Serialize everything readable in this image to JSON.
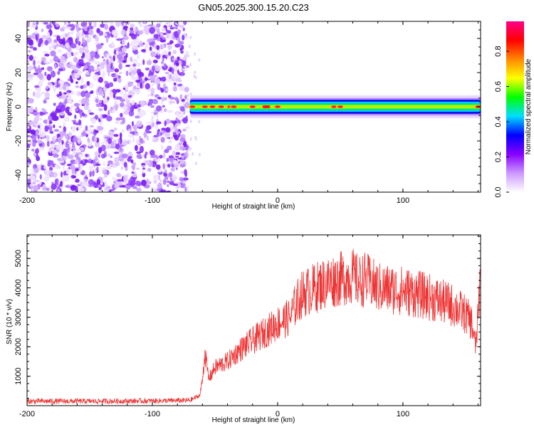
{
  "title": "GN05.2025.300.15.20.C23",
  "chart_data": [
    {
      "type": "heatmap",
      "title": "GN05.2025.300.15.20.C23",
      "xlabel": "Height of straight line (km)",
      "ylabel": "Frequency (Hz)",
      "xlim": [
        -200,
        162
      ],
      "ylim": [
        -50,
        50
      ],
      "xticks": [
        -200,
        -100,
        0,
        100
      ],
      "xtick_labels": [
        "-200",
        "-100",
        "0",
        "100"
      ],
      "yticks": [
        -40,
        -20,
        0,
        20,
        40
      ],
      "ytick_labels": [
        "-40",
        "-20",
        "0",
        "20",
        "40"
      ],
      "noise_region_x": [
        -200,
        -72
      ],
      "signal_band": {
        "x_range": [
          -70,
          162
        ],
        "center_frequency_hz": 0,
        "half_width_hz": 3,
        "peak_positions_km": [
          -68,
          -58,
          -52,
          -45,
          -38,
          -35,
          -20,
          -10,
          0,
          45,
          50,
          160
        ]
      },
      "colorbar": {
        "label": "Normalized spectral amplitude",
        "range": [
          0.0,
          0.97
        ],
        "ticks": [
          0.0,
          0.2,
          0.4,
          0.6,
          0.8
        ],
        "tick_labels": [
          "0.0",
          "0.2",
          "0.4",
          "0.6",
          "0.8"
        ],
        "colors": [
          "#ffffff",
          "#cc99ff",
          "#8800ff",
          "#0000ff",
          "#00ddff",
          "#00ff00",
          "#ffff00",
          "#ff8800",
          "#ff0000",
          "#ff0088"
        ]
      }
    },
    {
      "type": "line",
      "xlabel": "Height of straight line (km)",
      "ylabel": "SNR (10 * v/v)",
      "xlim": [
        -200,
        162
      ],
      "ylim": [
        0,
        5800
      ],
      "xticks": [
        -200,
        -100,
        0,
        100
      ],
      "xtick_labels": [
        "-200",
        "-100",
        "0",
        "100"
      ],
      "yticks": [
        1000,
        2000,
        3000,
        4000,
        5000
      ],
      "ytick_labels": [
        "1000",
        "2000",
        "3000",
        "4000",
        "5000"
      ],
      "series": [
        {
          "name": "SNR",
          "color": "#ee3333",
          "x": [
            -200,
            -150,
            -100,
            -70,
            -62,
            -60,
            -58,
            -55,
            -50,
            -40,
            -30,
            -20,
            -10,
            0,
            10,
            15,
            20,
            30,
            40,
            50,
            60,
            65,
            70,
            80,
            100,
            120,
            140,
            150,
            155,
            158,
            160,
            162
          ],
          "y": [
            150,
            150,
            160,
            180,
            350,
            900,
            1800,
            900,
            1300,
            1500,
            1900,
            2200,
            2500,
            2800,
            3000,
            3500,
            3800,
            4000,
            4200,
            4300,
            4400,
            4200,
            4300,
            4000,
            3900,
            3700,
            3400,
            3100,
            2800,
            2000,
            3000,
            4500
          ]
        }
      ]
    }
  ]
}
